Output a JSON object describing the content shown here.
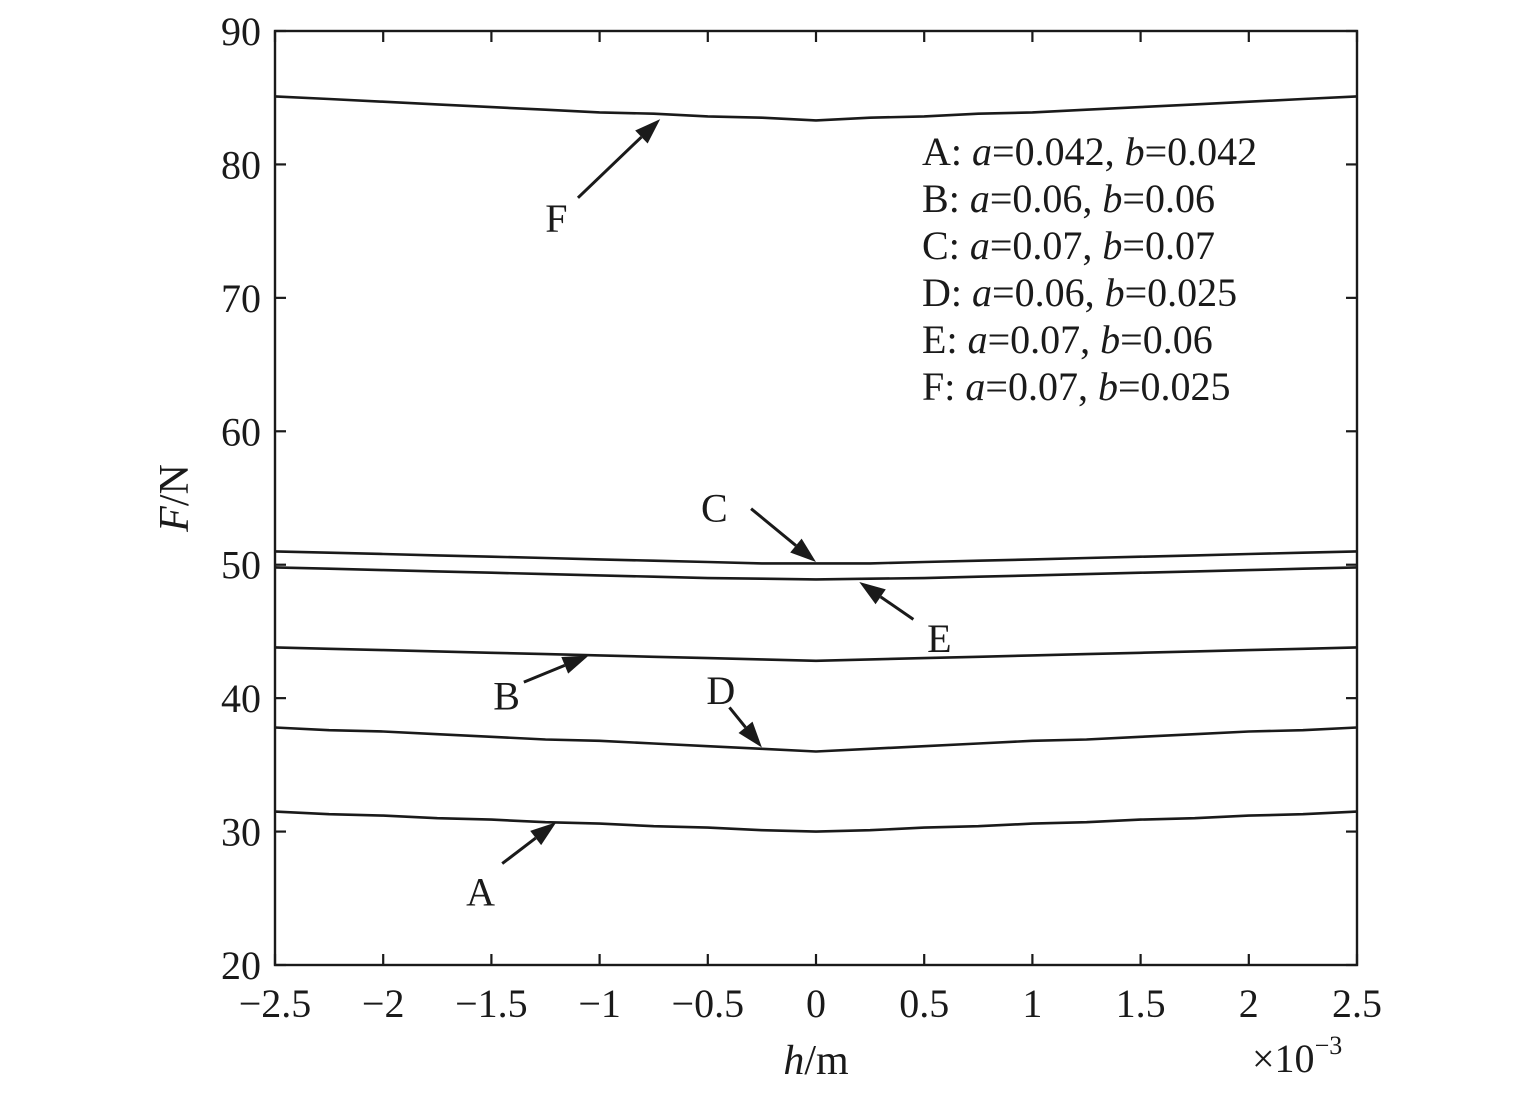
{
  "chart_data": {
    "type": "line",
    "title": "",
    "xlabel": "h/m",
    "xlabel_parts": {
      "var": "h",
      "unit": "/m"
    },
    "ylabel": "F/N",
    "ylabel_parts": {
      "var": "F",
      "unit": "/N"
    },
    "x_multiplier": "×10⁻³",
    "x_multiplier_parts": {
      "base": "×10",
      "exp": "−3"
    },
    "xlim": [
      -2.5,
      2.5
    ],
    "ylim": [
      20,
      90
    ],
    "x_ticks": [
      {
        "value": -2.5,
        "label": "−2.5"
      },
      {
        "value": -2,
        "label": "−2"
      },
      {
        "value": -1.5,
        "label": "−1.5"
      },
      {
        "value": -1,
        "label": "−1"
      },
      {
        "value": -0.5,
        "label": "−0.5"
      },
      {
        "value": 0,
        "label": "0"
      },
      {
        "value": 0.5,
        "label": "0.5"
      },
      {
        "value": 1,
        "label": "1"
      },
      {
        "value": 1.5,
        "label": "1.5"
      },
      {
        "value": 2,
        "label": "2"
      },
      {
        "value": 2.5,
        "label": "2.5"
      }
    ],
    "y_ticks": [
      {
        "value": 20,
        "label": "20"
      },
      {
        "value": 30,
        "label": "30"
      },
      {
        "value": 40,
        "label": "40"
      },
      {
        "value": 50,
        "label": "50"
      },
      {
        "value": 60,
        "label": "60"
      },
      {
        "value": 70,
        "label": "70"
      },
      {
        "value": 80,
        "label": "80"
      },
      {
        "value": 90,
        "label": "90"
      }
    ],
    "grid": false,
    "legend_position": "top-right",
    "x": [
      -2.5,
      -2.25,
      -2.0,
      -1.75,
      -1.5,
      -1.25,
      -1.0,
      -0.75,
      -0.5,
      -0.25,
      0.0,
      0.25,
      0.5,
      0.75,
      1.0,
      1.25,
      1.5,
      1.75,
      2.0,
      2.25,
      2.5
    ],
    "series": [
      {
        "name": "A",
        "legend": {
          "letter": "A",
          "a": "0.042",
          "b": "0.042"
        },
        "values": [
          31.5,
          31.3,
          31.2,
          31.0,
          30.9,
          30.7,
          30.6,
          30.4,
          30.3,
          30.1,
          30.0,
          30.1,
          30.3,
          30.4,
          30.6,
          30.7,
          30.9,
          31.0,
          31.2,
          31.3,
          31.5
        ]
      },
      {
        "name": "B",
        "legend": {
          "letter": "B",
          "a": "0.06",
          "b": "0.06"
        },
        "values": [
          43.8,
          43.7,
          43.6,
          43.5,
          43.4,
          43.3,
          43.2,
          43.1,
          43.0,
          42.9,
          42.8,
          42.9,
          43.0,
          43.1,
          43.2,
          43.3,
          43.4,
          43.5,
          43.6,
          43.7,
          43.8
        ]
      },
      {
        "name": "C",
        "legend": {
          "letter": "C",
          "a": "0.07",
          "b": "0.07"
        },
        "values": [
          51.0,
          50.9,
          50.8,
          50.7,
          50.6,
          50.5,
          50.4,
          50.3,
          50.2,
          50.1,
          50.1,
          50.1,
          50.2,
          50.3,
          50.4,
          50.5,
          50.6,
          50.7,
          50.8,
          50.9,
          51.0
        ]
      },
      {
        "name": "D",
        "legend": {
          "letter": "D",
          "a": "0.06",
          "b": "0.025"
        },
        "values": [
          37.8,
          37.6,
          37.5,
          37.3,
          37.1,
          36.9,
          36.8,
          36.6,
          36.4,
          36.2,
          36.0,
          36.2,
          36.4,
          36.6,
          36.8,
          36.9,
          37.1,
          37.3,
          37.5,
          37.6,
          37.8
        ]
      },
      {
        "name": "E",
        "legend": {
          "letter": "E",
          "a": "0.07",
          "b": "0.06"
        },
        "values": [
          49.8,
          49.7,
          49.6,
          49.5,
          49.4,
          49.3,
          49.2,
          49.1,
          49.0,
          48.95,
          48.9,
          48.95,
          49.0,
          49.1,
          49.2,
          49.3,
          49.4,
          49.5,
          49.6,
          49.7,
          49.8
        ]
      },
      {
        "name": "F",
        "legend": {
          "letter": "F",
          "a": "0.07",
          "b": "0.025"
        },
        "values": [
          85.1,
          84.9,
          84.7,
          84.5,
          84.3,
          84.1,
          83.9,
          83.8,
          83.6,
          83.5,
          83.3,
          83.5,
          83.6,
          83.8,
          83.9,
          84.1,
          84.3,
          84.5,
          84.7,
          84.9,
          85.1
        ]
      }
    ],
    "annotations": [
      {
        "label": "A",
        "text_at": [
          -1.55,
          25.5
        ],
        "arrow_from": [
          -1.45,
          27.6
        ],
        "arrow_to": [
          -1.2,
          30.7
        ]
      },
      {
        "label": "B",
        "text_at": [
          -1.43,
          40.2
        ],
        "arrow_from": [
          -1.35,
          41.2
        ],
        "arrow_to": [
          -1.05,
          43.2
        ]
      },
      {
        "label": "C",
        "text_at": [
          -0.47,
          54.3
        ],
        "arrow_from": [
          -0.3,
          54.2
        ],
        "arrow_to": [
          0.0,
          50.2
        ]
      },
      {
        "label": "D",
        "text_at": [
          -0.44,
          40.6
        ],
        "arrow_from": [
          -0.4,
          39.3
        ],
        "arrow_to": [
          -0.25,
          36.3
        ]
      },
      {
        "label": "E",
        "text_at": [
          0.57,
          44.5
        ],
        "arrow_from": [
          0.45,
          45.9
        ],
        "arrow_to": [
          0.2,
          48.7
        ]
      },
      {
        "label": "F",
        "text_at": [
          -1.2,
          76.0
        ],
        "arrow_from": [
          -1.1,
          77.5
        ],
        "arrow_to": [
          -0.72,
          83.4
        ]
      }
    ]
  }
}
